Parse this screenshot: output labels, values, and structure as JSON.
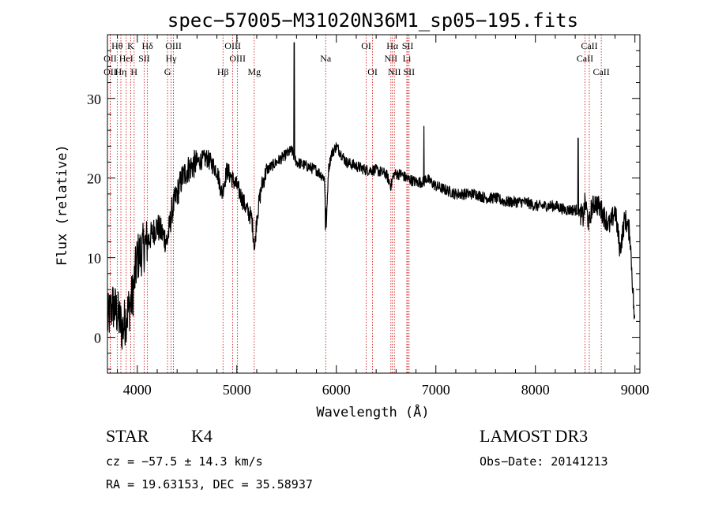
{
  "chart_data": {
    "type": "line",
    "title": "spec−57005−M31020N36M1_sp05−195.fits",
    "xlabel": "Wavelength (Å)",
    "ylabel": "Flux (relative)",
    "xlim": [
      3700,
      9050
    ],
    "ylim": [
      -4.5,
      38
    ],
    "xticks": [
      4000,
      5000,
      6000,
      7000,
      8000,
      9000
    ],
    "yticks": [
      0,
      10,
      20,
      30
    ],
    "spectrum_anchor_points": {
      "x": [
        3700,
        3750,
        3800,
        3850,
        3900,
        3950,
        4000,
        4050,
        4100,
        4150,
        4200,
        4250,
        4300,
        4350,
        4400,
        4450,
        4500,
        4600,
        4700,
        4800,
        4850,
        4900,
        5000,
        5100,
        5150,
        5180,
        5200,
        5250,
        5300,
        5400,
        5500,
        5550,
        5600,
        5700,
        5800,
        5880,
        5900,
        5920,
        5950,
        6000,
        6100,
        6200,
        6300,
        6400,
        6500,
        6550,
        6565,
        6580,
        6650,
        6700,
        6800,
        6880,
        6900,
        7000,
        7100,
        7200,
        7300,
        7400,
        7500,
        7600,
        7700,
        7800,
        7900,
        8000,
        8100,
        8200,
        8300,
        8400,
        8430,
        8480,
        8500,
        8540,
        8560,
        8600,
        8660,
        8700,
        8750,
        8800,
        8850,
        8900,
        8950,
        9000
      ],
      "y": [
        2,
        4,
        3,
        1,
        3,
        5,
        10,
        11,
        12,
        13,
        14,
        13,
        12,
        16,
        18,
        20,
        21,
        22,
        22.5,
        21,
        18,
        21,
        19,
        16,
        15,
        11,
        15,
        19,
        21,
        22,
        23,
        23.5,
        22,
        21.5,
        21,
        20,
        14,
        21,
        23,
        24,
        22,
        21.5,
        21,
        21,
        20.5,
        19,
        20,
        20.5,
        20.5,
        20,
        19.5,
        19.5,
        20,
        19,
        18.5,
        18,
        18,
        18,
        17.5,
        17.5,
        17,
        17,
        17,
        16.5,
        16.5,
        16.5,
        16,
        16,
        16,
        15,
        17,
        14,
        16,
        17,
        16,
        15,
        14,
        16,
        11,
        15,
        13,
        1
      ]
    },
    "spectrum_spikes": [
      {
        "x": 5577,
        "y": 37
      },
      {
        "x": 6880,
        "y": 26.5
      },
      {
        "x": 8430,
        "y": 25
      },
      {
        "x": 5890,
        "y": 13.5
      }
    ],
    "spectral_lines": [
      {
        "label": "Hθ",
        "wavelength": 3798,
        "row": 1
      },
      {
        "label": "OII",
        "wavelength": 3727,
        "row": 2
      },
      {
        "label": "OII",
        "wavelength": 3727,
        "row": 3
      },
      {
        "label": "HeI",
        "wavelength": 3889,
        "row": 2
      },
      {
        "label": "Hη",
        "wavelength": 3835,
        "row": 3
      },
      {
        "label": "K",
        "wavelength": 3934,
        "row": 1
      },
      {
        "label": "H",
        "wavelength": 3968,
        "row": 3
      },
      {
        "label": "SII",
        "wavelength": 4069,
        "row": 2
      },
      {
        "label": "Hδ",
        "wavelength": 4102,
        "row": 1
      },
      {
        "label": "OIII",
        "wavelength": 4363,
        "row": 1
      },
      {
        "label": "Hγ",
        "wavelength": 4340,
        "row": 2
      },
      {
        "label": "G",
        "wavelength": 4304,
        "row": 3
      },
      {
        "label": "OIII",
        "wavelength": 4959,
        "row": 1
      },
      {
        "label": "OIII",
        "wavelength": 5007,
        "row": 2
      },
      {
        "label": "Hβ",
        "wavelength": 4861,
        "row": 3
      },
      {
        "label": "Mg",
        "wavelength": 5175,
        "row": 3
      },
      {
        "label": "Na",
        "wavelength": 5893,
        "row": 2
      },
      {
        "label": "OI",
        "wavelength": 6300,
        "row": 1
      },
      {
        "label": "OI",
        "wavelength": 6364,
        "row": 3
      },
      {
        "label": "Hα",
        "wavelength": 6563,
        "row": 1
      },
      {
        "label": "SII",
        "wavelength": 6717,
        "row": 1
      },
      {
        "label": "NII",
        "wavelength": 6548,
        "row": 2
      },
      {
        "label": "Li",
        "wavelength": 6708,
        "row": 2
      },
      {
        "label": "NII",
        "wavelength": 6583,
        "row": 3
      },
      {
        "label": "SII",
        "wavelength": 6731,
        "row": 3
      },
      {
        "label": "CaII",
        "wavelength": 8542,
        "row": 1
      },
      {
        "label": "CaII",
        "wavelength": 8498,
        "row": 2
      },
      {
        "label": "CaII",
        "wavelength": 8662,
        "row": 3
      }
    ]
  },
  "info": {
    "object_class": "STAR",
    "subclass": "K4",
    "survey": "LAMOST DR3",
    "cz": "cz = −57.5 ± 14.3 km/s",
    "obs_date": "Obs−Date: 20141213",
    "coords": "RA =  19.63153, DEC =  35.58937"
  },
  "colors": {
    "line_marker": "#cc0000",
    "spectrum": "#000000"
  }
}
